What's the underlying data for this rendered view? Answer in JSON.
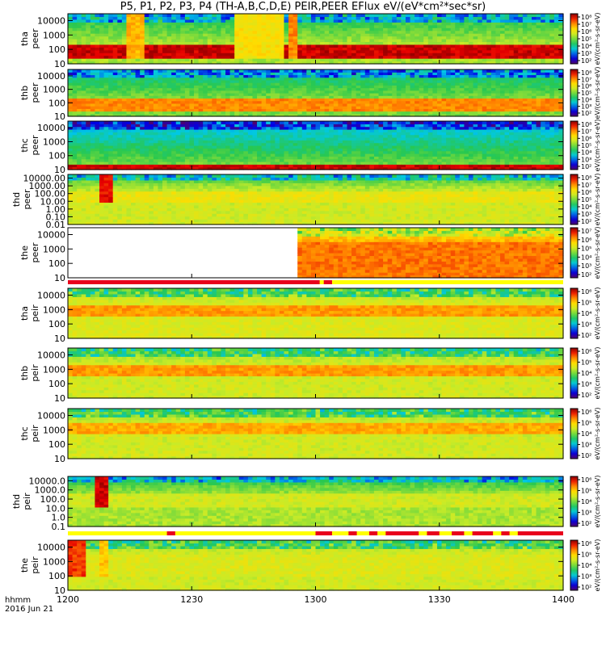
{
  "chart_data": {
    "type": "heatmap",
    "title": "P5, P1, P2, P3, P4 (TH-A,B,C,D,E) PEIR,PEER EFlux eV/(eV*cm²*sec*sr)",
    "x_axis": {
      "ticks": [
        "1200",
        "1230",
        "1300",
        "1330",
        "1400"
      ],
      "tick_values_minutes": [
        0,
        30,
        60,
        90,
        120
      ],
      "range_minutes": [
        0,
        120
      ],
      "label_line1": "hhmm",
      "label_line2": "2016 Jun 21"
    },
    "colorbar_unit": "eV/(cm²-s-sr-eV)",
    "panels": [
      {
        "name": "tha-peer",
        "label_line1": "tha",
        "label_line2": "peer",
        "y_ticks": [
          "10",
          "100",
          "1000",
          "10000"
        ],
        "y_range": [
          10,
          30000
        ],
        "colorbar_ticks": [
          "10²",
          "10³",
          "10⁴",
          "10⁵",
          "10⁶",
          "10⁷",
          "10⁸"
        ],
        "band_low_log": 1.3,
        "band_high_log": 2.4,
        "band_level": 0.95,
        "bg_level": 0.55,
        "bursts": [
          [
            14,
            18,
            0.75
          ],
          [
            53,
            56,
            0.8
          ],
          [
            40,
            52,
            0.68
          ]
        ]
      },
      {
        "name": "thb-peer",
        "label_line1": "thb",
        "label_line2": "peer",
        "y_ticks": [
          "10",
          "100",
          "1000",
          "10000"
        ],
        "y_range": [
          10,
          30000
        ],
        "colorbar_ticks": [
          "10²",
          "10³",
          "10⁴",
          "10⁵",
          "10⁶",
          "10⁷",
          "10⁸"
        ],
        "band_low_log": 1.4,
        "band_high_log": 2.4,
        "band_level": 0.8,
        "bg_level": 0.5,
        "bursts": []
      },
      {
        "name": "thc-peer",
        "label_line1": "thc",
        "label_line2": "peer",
        "y_ticks": [
          "10",
          "100",
          "1000",
          "10000"
        ],
        "y_range": [
          10,
          30000
        ],
        "colorbar_ticks": [
          "10²",
          "10³",
          "10⁴",
          "10⁵",
          "10⁶",
          "10⁷",
          "10⁸"
        ],
        "band_low_log": 1.0,
        "band_high_log": 1.3,
        "band_level": 0.95,
        "bg_level": 0.5,
        "bursts": []
      },
      {
        "name": "thd-peer",
        "label_line1": "thd",
        "label_line2": "peer",
        "y_ticks": [
          "0.01",
          "0.10",
          "1.00",
          "10.00",
          "100.00",
          "1000.00",
          "10000.00"
        ],
        "y_range": [
          0.01,
          30000
        ],
        "colorbar_ticks": [
          "10²",
          "10³",
          "10⁴",
          "10⁵",
          "10⁶",
          "10⁷",
          "10⁸"
        ],
        "band_low_log": 1.0,
        "band_high_log": 2.2,
        "band_level": 0.65,
        "bg_level": 0.6,
        "bursts": [
          [
            8,
            11,
            0.92
          ]
        ]
      },
      {
        "name": "the-peer",
        "label_line1": "the",
        "label_line2": "peer",
        "y_ticks": [
          "10",
          "100",
          "1000",
          "10000"
        ],
        "y_range": [
          10,
          30000
        ],
        "colorbar_ticks": [
          "10²",
          "10³",
          "10⁴",
          "10⁵",
          "10⁶",
          "10⁷"
        ],
        "band_low_log": 1.0,
        "band_high_log": 3.5,
        "band_level": 0.82,
        "bg_level": 0.75,
        "gap_minutes": [
          0,
          56
        ],
        "bursts": []
      },
      {
        "name": "tha-peir",
        "label_line1": "tha",
        "label_line2": "peir",
        "y_ticks": [
          "10",
          "100",
          "1000",
          "10000"
        ],
        "y_range": [
          10,
          30000
        ],
        "colorbar_ticks": [
          "10²",
          "10³",
          "10⁴",
          "10⁵",
          "10⁶"
        ],
        "band_low_log": 2.5,
        "band_high_log": 3.4,
        "band_level": 0.78,
        "bg_level": 0.62,
        "bursts": []
      },
      {
        "name": "thb-peir",
        "label_line1": "thb",
        "label_line2": "peir",
        "y_ticks": [
          "10",
          "100",
          "1000",
          "10000"
        ],
        "y_range": [
          10,
          30000
        ],
        "colorbar_ticks": [
          "10²",
          "10³",
          "10⁴",
          "10⁵",
          "10⁶"
        ],
        "band_low_log": 2.6,
        "band_high_log": 3.4,
        "band_level": 0.78,
        "bg_level": 0.6,
        "bursts": []
      },
      {
        "name": "thc-peir",
        "label_line1": "thc",
        "label_line2": "peir",
        "y_ticks": [
          "10",
          "100",
          "1000",
          "10000"
        ],
        "y_range": [
          10,
          30000
        ],
        "colorbar_ticks": [
          "10²",
          "10³",
          "10⁴",
          "10⁵",
          "10⁶"
        ],
        "band_low_log": 2.7,
        "band_high_log": 3.5,
        "band_level": 0.76,
        "bg_level": 0.6,
        "bursts": []
      },
      {
        "name": "thd-peir",
        "label_line1": "thd",
        "label_line2": "peir",
        "y_ticks": [
          "0.1",
          "1.0",
          "10.0",
          "100.0",
          "1000.0",
          "10000.0"
        ],
        "y_range": [
          0.1,
          30000
        ],
        "colorbar_ticks": [
          "10²",
          "10³",
          "10⁴",
          "10⁵",
          "10⁶"
        ],
        "band_low_log": 1.0,
        "band_high_log": 2.5,
        "band_level": 0.6,
        "bg_level": 0.55,
        "bursts": [
          [
            7,
            10,
            0.95
          ]
        ]
      },
      {
        "name": "the-peir",
        "label_line1": "the",
        "label_line2": "peir",
        "y_ticks": [
          "10",
          "100",
          "1000",
          "10000"
        ],
        "y_range": [
          10,
          30000
        ],
        "colorbar_ticks": [
          "10²",
          "10³",
          "10⁴",
          "10⁵",
          "10⁶"
        ],
        "band_low_log": 2.0,
        "band_high_log": 3.6,
        "band_level": 0.62,
        "bg_level": 0.6,
        "bursts": [
          [
            0,
            4,
            0.88
          ],
          [
            8,
            10,
            0.72
          ]
        ]
      }
    ],
    "flag_bars": [
      {
        "after_panel": 4,
        "segments_minutes": [
          [
            0,
            61
          ],
          [
            62,
            64
          ]
        ]
      },
      {
        "after_panel": 8,
        "segments_minutes": [
          [
            24,
            26
          ],
          [
            60,
            64
          ],
          [
            68,
            70
          ],
          [
            73,
            75
          ],
          [
            77,
            85
          ],
          [
            87,
            90
          ],
          [
            93,
            96
          ],
          [
            98,
            103
          ],
          [
            105,
            107
          ],
          [
            109,
            120
          ]
        ]
      }
    ]
  }
}
